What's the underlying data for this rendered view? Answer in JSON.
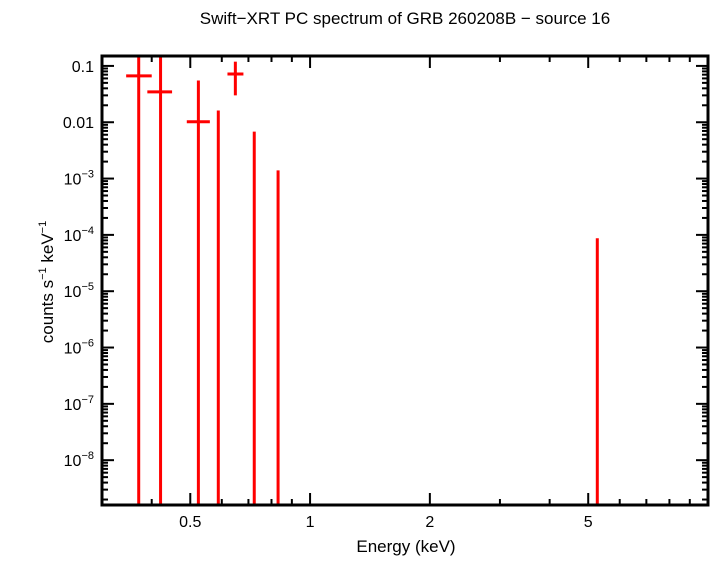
{
  "chart_data": {
    "type": "scatter",
    "title": "Swift−XRT PC spectrum of GRB 260208B − source 16",
    "xlabel": "Energy (keV)",
    "ylabel_parts": [
      "counts s",
      "−1",
      " keV",
      "−1"
    ],
    "xscale": "log",
    "yscale": "log",
    "xlim": [
      0.3,
      10
    ],
    "ylim": [
      1.6e-09,
      0.15
    ],
    "grid": false,
    "color": "#ff0000",
    "x_ticks": [
      {
        "v": 0.5,
        "label": "0.5"
      },
      {
        "v": 1,
        "label": "1"
      },
      {
        "v": 2,
        "label": "2"
      },
      {
        "v": 5,
        "label": "5"
      }
    ],
    "y_ticks": [
      {
        "v": 0.1,
        "label": "0.1"
      },
      {
        "v": 0.01,
        "label": "0.01"
      },
      {
        "v": 0.001,
        "base": "10",
        "exp": "−3"
      },
      {
        "v": 0.0001,
        "base": "10",
        "exp": "−4"
      },
      {
        "v": 1e-05,
        "base": "10",
        "exp": "−5"
      },
      {
        "v": 1e-06,
        "base": "10",
        "exp": "−6"
      },
      {
        "v": 1e-07,
        "base": "10",
        "exp": "−7"
      },
      {
        "v": 1e-08,
        "base": "10",
        "exp": "−8"
      }
    ],
    "points": [
      {
        "x": 0.371,
        "xlo": 0.345,
        "xhi": 0.4,
        "y": 0.0665,
        "ylo": null,
        "yhi": 0.2
      },
      {
        "x": 0.421,
        "xlo": 0.39,
        "xhi": 0.45,
        "y": 0.0346,
        "ylo": null,
        "yhi": 0.2
      },
      {
        "x": 0.524,
        "xlo": 0.49,
        "xhi": 0.56,
        "y": 0.0102,
        "ylo": null,
        "yhi": 0.055
      },
      {
        "x": 0.588,
        "xlo": null,
        "xhi": null,
        "y": null,
        "ylo": null,
        "yhi": 0.0162
      },
      {
        "x": 0.649,
        "xlo": 0.62,
        "xhi": 0.68,
        "y": 0.072,
        "ylo": 0.03,
        "yhi": 0.119
      },
      {
        "x": 0.724,
        "xlo": null,
        "xhi": null,
        "y": null,
        "ylo": null,
        "yhi": 0.0068
      },
      {
        "x": 0.831,
        "xlo": null,
        "xhi": null,
        "y": null,
        "ylo": null,
        "yhi": 0.0014
      },
      {
        "x": 5.27,
        "xlo": null,
        "xhi": null,
        "y": null,
        "ylo": null,
        "yhi": 8.7e-05
      }
    ]
  }
}
